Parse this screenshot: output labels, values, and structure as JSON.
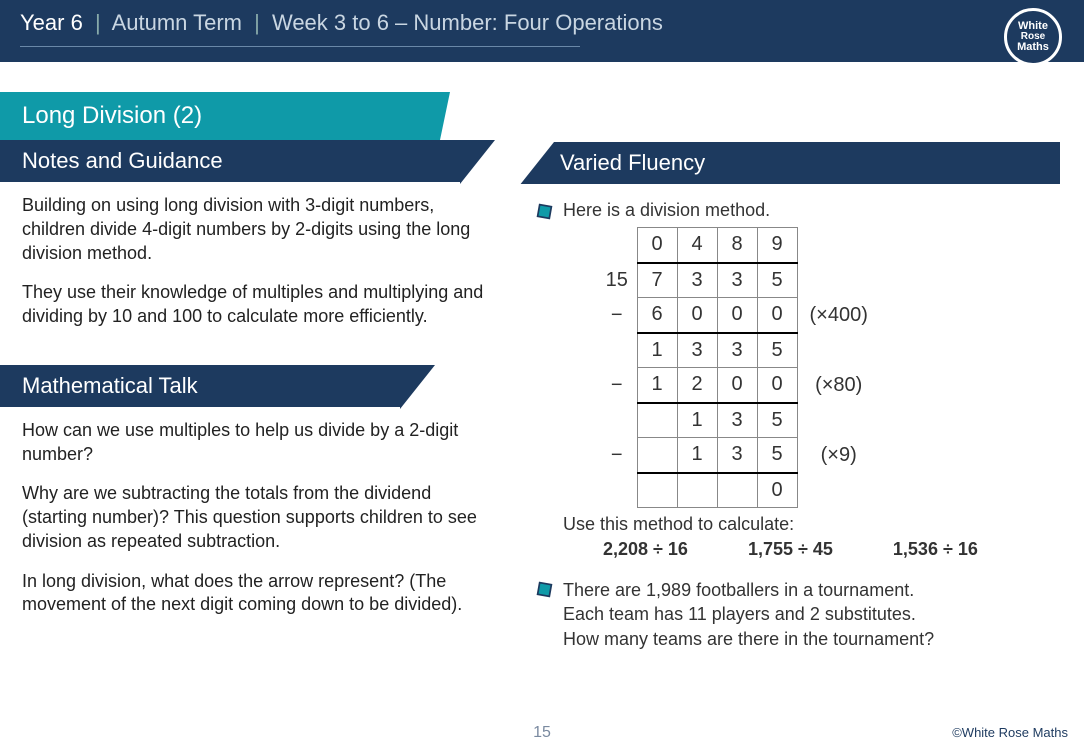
{
  "header": {
    "year": "Year 6",
    "term": "Autumn Term",
    "week": "Week 3 to 6 – Number: Four Operations",
    "logo_lines": [
      "White",
      "Rose",
      "Maths"
    ]
  },
  "colors": {
    "brand_navy": "#1d3a5f",
    "brand_teal": "#0f9aa8",
    "bullet_fill": "#0f9aa8",
    "bullet_outline": "#1d3a5f"
  },
  "topic": "Long Division (2)",
  "sections": {
    "notes_title": "Notes and Guidance",
    "talk_title": "Mathematical Talk",
    "fluency_title": "Varied Fluency"
  },
  "notes": {
    "p1": "Building on using long division with 3-digit numbers, children divide 4-digit numbers by 2-digits using the long division method.",
    "p2": "They use their knowledge of multiples and multiplying and dividing by 10 and 100 to calculate more efficiently."
  },
  "talk": {
    "p1": "How can we use multiples to help us divide by a 2-digit number?",
    "p2": "Why are we subtracting the totals from the dividend (starting number)?  This question supports children to see division as repeated subtraction.",
    "p3": "In long division, what does the arrow represent?  (The movement of the next digit coming down to be divided)."
  },
  "fluency": {
    "q1_intro": "Here is a division method.",
    "division": {
      "divisor": "15",
      "quotient": [
        "",
        "0",
        "4",
        "8",
        "9"
      ],
      "rows": [
        {
          "cells": [
            "15",
            "7",
            "3",
            "3",
            "5"
          ],
          "annot": ""
        },
        {
          "cells": [
            "−",
            "6",
            "0",
            "0",
            "0"
          ],
          "annot": "(×400)",
          "sub": true
        },
        {
          "cells": [
            "",
            "1",
            "3",
            "3",
            "5"
          ],
          "annot": ""
        },
        {
          "cells": [
            "−",
            "1",
            "2",
            "0",
            "0"
          ],
          "annot": "(×80)",
          "sub": true
        },
        {
          "cells": [
            "",
            "",
            "1",
            "3",
            "5"
          ],
          "annot": ""
        },
        {
          "cells": [
            "−",
            "",
            "1",
            "3",
            "5"
          ],
          "annot": "(×9)",
          "sub": true
        },
        {
          "cells": [
            "",
            "",
            "",
            "",
            "0"
          ],
          "annot": ""
        }
      ]
    },
    "q1_prompt": "Use this method to calculate:",
    "q1_calcs": [
      "2,208 ÷ 16",
      "1,755 ÷ 45",
      "1,536 ÷ 16"
    ],
    "q2_l1": "There are 1,989 footballers in a tournament.",
    "q2_l2": "Each team has 11 players and 2 substitutes.",
    "q2_l3": "How many teams are there in the tournament?"
  },
  "page_number": "15",
  "copyright": "©White Rose Maths"
}
